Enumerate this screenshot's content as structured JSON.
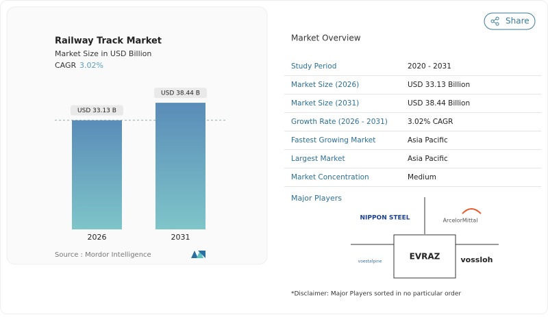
{
  "chart_data": {
    "type": "bar",
    "title": "Railway Track Market",
    "subtitle": "Market Size in USD Billion",
    "cagr_label": "CAGR",
    "cagr_value": "3.02%",
    "categories": [
      "2026",
      "2031"
    ],
    "values": [
      33.13,
      38.44
    ],
    "value_labels": [
      "USD 33.13 B",
      "USD 38.44 B"
    ],
    "source": "Source :  Mordor Intelligence"
  },
  "share": "Share",
  "overview": {
    "title": "Market Overview",
    "rows": [
      [
        "Study Period",
        "2020 - 2031"
      ],
      [
        "Market Size (2026)",
        "USD 33.13 Billion"
      ],
      [
        "Market Size (2031)",
        "USD 38.44 Billion"
      ],
      [
        "Growth Rate (2026 - 2031)",
        "3.02% CAGR"
      ],
      [
        "Fastest Growing Market",
        "Asia Pacific"
      ],
      [
        "Largest Market",
        "Asia Pacific"
      ],
      [
        "Market Concentration",
        "Medium"
      ]
    ]
  },
  "players": {
    "title": "Major Players",
    "names": [
      "NIPPON STEEL",
      "ArcelorMittal",
      "EVRAZ",
      "voestalpine",
      "vossloh"
    ]
  },
  "disclaimer": "*Disclaimer: Major Players sorted in no particular order"
}
